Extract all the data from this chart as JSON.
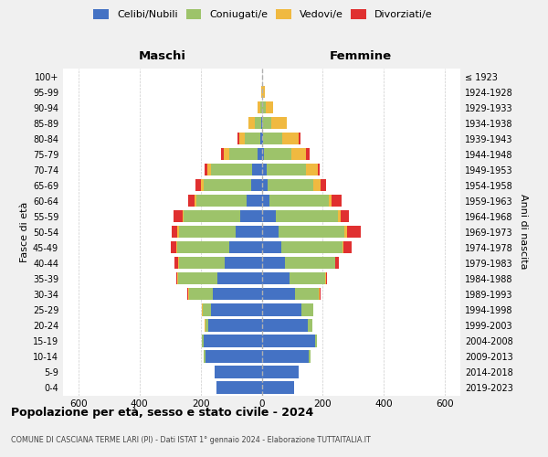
{
  "age_groups": [
    "100+",
    "95-99",
    "90-94",
    "85-89",
    "80-84",
    "75-79",
    "70-74",
    "65-69",
    "60-64",
    "55-59",
    "50-54",
    "45-49",
    "40-44",
    "35-39",
    "30-34",
    "25-29",
    "20-24",
    "15-19",
    "10-14",
    "5-9",
    "0-4"
  ],
  "birth_years": [
    "≤ 1923",
    "1924-1928",
    "1929-1933",
    "1934-1938",
    "1939-1943",
    "1944-1948",
    "1949-1953",
    "1954-1958",
    "1959-1963",
    "1964-1968",
    "1969-1973",
    "1974-1978",
    "1979-1983",
    "1984-1988",
    "1989-1993",
    "1994-1998",
    "1999-2003",
    "2004-2008",
    "2009-2013",
    "2014-2018",
    "2019-2023"
  ],
  "colors": {
    "celibi": "#4472c4",
    "coniugati": "#9dc36a",
    "vedovi": "#f0b940",
    "divorziati": "#e03030"
  },
  "maschi": {
    "celibi": [
      0,
      0,
      0,
      2,
      5,
      12,
      30,
      35,
      50,
      70,
      85,
      105,
      120,
      145,
      160,
      165,
      175,
      190,
      185,
      155,
      148
    ],
    "coniugati": [
      0,
      0,
      5,
      20,
      50,
      95,
      135,
      155,
      165,
      185,
      185,
      170,
      150,
      128,
      78,
      28,
      10,
      5,
      5,
      0,
      0
    ],
    "vedovi": [
      0,
      2,
      8,
      22,
      18,
      18,
      12,
      8,
      5,
      5,
      5,
      3,
      2,
      2,
      2,
      2,
      2,
      0,
      0,
      0,
      0
    ],
    "divorziati": [
      0,
      0,
      0,
      0,
      5,
      8,
      10,
      18,
      22,
      28,
      18,
      18,
      12,
      5,
      5,
      0,
      0,
      0,
      0,
      0,
      0
    ]
  },
  "femmine": {
    "celibi": [
      0,
      0,
      2,
      2,
      5,
      8,
      15,
      18,
      25,
      45,
      55,
      65,
      75,
      90,
      110,
      130,
      150,
      175,
      155,
      120,
      105
    ],
    "coniugati": [
      0,
      2,
      10,
      30,
      62,
      90,
      130,
      152,
      195,
      205,
      215,
      198,
      165,
      118,
      78,
      38,
      15,
      5,
      5,
      0,
      0
    ],
    "vedovi": [
      2,
      8,
      25,
      50,
      55,
      48,
      38,
      22,
      10,
      8,
      8,
      5,
      2,
      2,
      2,
      2,
      0,
      0,
      0,
      0,
      0
    ],
    "divorziati": [
      0,
      0,
      0,
      0,
      5,
      10,
      8,
      18,
      30,
      28,
      45,
      25,
      10,
      5,
      2,
      0,
      0,
      0,
      0,
      0,
      0
    ]
  },
  "title": "Popolazione per età, sesso e stato civile - 2024",
  "subtitle": "COMUNE DI CASCIANA TERME LARI (PI) - Dati ISTAT 1° gennaio 2024 - Elaborazione TUTTAITALIA.IT",
  "maschi_label": "Maschi",
  "femmine_label": "Femmine",
  "ylabel_left": "Fasce di età",
  "ylabel_right": "Anni di nascita",
  "xlim": 650,
  "bg_color": "#f0f0f0",
  "plot_bg": "#ffffff",
  "legend_labels": [
    "Celibi/Nubili",
    "Coniugati/e",
    "Vedovi/e",
    "Divorziati/e"
  ]
}
